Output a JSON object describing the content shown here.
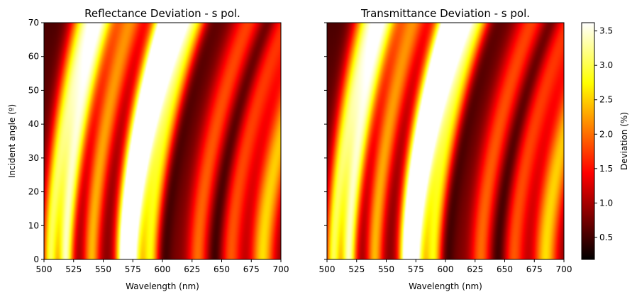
{
  "colormap": {
    "name": "hot",
    "stops": [
      "#000000",
      "#ff0000",
      "#ffff00",
      "#ffffff"
    ]
  },
  "colorbar": {
    "label": "Deviation (%)",
    "range": [
      0.18,
      3.62
    ],
    "ticks": [
      0.5,
      1.0,
      1.5,
      2.0,
      2.5,
      3.0,
      3.5
    ],
    "tick_labels": [
      "0.5",
      "1.0",
      "1.5",
      "2.0",
      "2.5",
      "3.0",
      "3.5"
    ]
  },
  "chart_data": [
    {
      "type": "heatmap",
      "title": "Reflectance Deviation - s pol.",
      "xlabel": "Wavelength (nm)",
      "ylabel": "Incident angle (º)",
      "xlim": [
        500,
        700
      ],
      "ylim": [
        0,
        70
      ],
      "xticks": [
        500,
        525,
        550,
        575,
        600,
        625,
        650,
        675,
        700
      ],
      "yticks": [
        0,
        10,
        20,
        30,
        40,
        50,
        60,
        70
      ],
      "z_description_unit": "Deviation (%)",
      "ridges_at_0deg_nm": [
        {
          "wavelength": 505,
          "peak": 2.6
        },
        {
          "wavelength": 518,
          "peak": 3.0
        },
        {
          "wavelength": 540,
          "peak": 2.0
        },
        {
          "wavelength": 568,
          "peak": 3.55
        },
        {
          "wavelength": 575,
          "peak": 2.6
        },
        {
          "wavelength": 590,
          "peak": 2.4
        },
        {
          "wavelength": 630,
          "peak": 1.6
        },
        {
          "wavelength": 658,
          "peak": 1.5
        },
        {
          "wavelength": 685,
          "peak": 2.2
        }
      ],
      "minima_at_0deg_nm": [
        600,
        645
      ],
      "ridge_shift_at_70deg_nm": 45
    },
    {
      "type": "heatmap",
      "title": "Transmittance Deviation - s pol.",
      "xlabel": "Wavelength (nm)",
      "ylabel": "",
      "xlim": [
        500,
        700
      ],
      "ylim": [
        0,
        70
      ],
      "xticks": [
        500,
        525,
        550,
        575,
        600,
        625,
        650,
        675,
        700
      ],
      "yticks": [
        0,
        10,
        20,
        30,
        40,
        50,
        60,
        70
      ],
      "z_description_unit": "Deviation (%)",
      "ridges_at_0deg_nm": [
        {
          "wavelength": 505,
          "peak": 2.6
        },
        {
          "wavelength": 518,
          "peak": 3.0
        },
        {
          "wavelength": 540,
          "peak": 2.0
        },
        {
          "wavelength": 568,
          "peak": 3.55
        },
        {
          "wavelength": 575,
          "peak": 2.6
        },
        {
          "wavelength": 590,
          "peak": 2.4
        },
        {
          "wavelength": 630,
          "peak": 1.6
        },
        {
          "wavelength": 658,
          "peak": 1.5
        },
        {
          "wavelength": 685,
          "peak": 2.2
        }
      ],
      "minima_at_0deg_nm": [
        600,
        645
      ],
      "ridge_shift_at_70deg_nm": 45
    }
  ]
}
